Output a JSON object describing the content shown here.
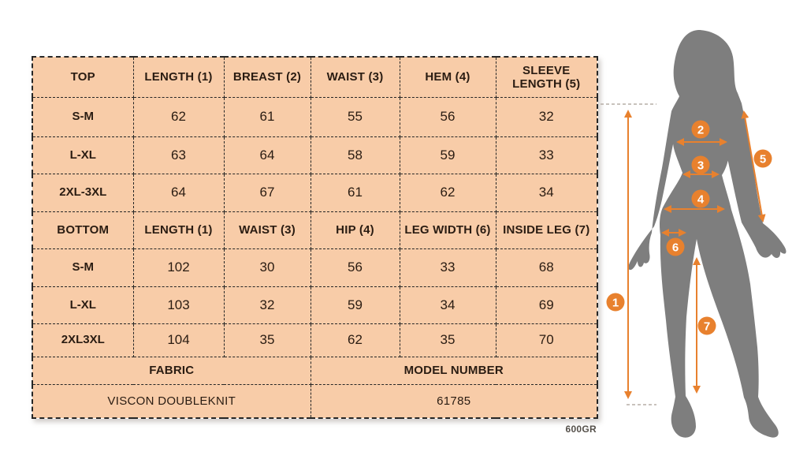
{
  "page": {
    "footnote": "600GR"
  },
  "colors": {
    "header_orange": "#E57E2B",
    "cell_peach": "#F8CCA8",
    "accent_orange": "#E8812E",
    "silhouette_gray": "#7E7E7E",
    "text_dark": "#2A1C12"
  },
  "size_chart": {
    "top_section": {
      "header": [
        "TOP",
        "LENGTH (1)",
        "BREAST (2)",
        "WAIST (3)",
        "HEM (4)",
        "SLEEVE LENGTH (5)"
      ],
      "rows": [
        {
          "label": "S-M",
          "values": [
            "62",
            "61",
            "55",
            "56",
            "32"
          ]
        },
        {
          "label": "L-XL",
          "values": [
            "63",
            "64",
            "58",
            "59",
            "33"
          ]
        },
        {
          "label": "2XL-3XL",
          "values": [
            "64",
            "67",
            "61",
            "62",
            "34"
          ]
        }
      ]
    },
    "bottom_section": {
      "header": [
        "BOTTOM",
        "LENGTH (1)",
        "WAIST (3)",
        "HIP (4)",
        "LEG WIDTH (6)",
        "INSIDE LEG (7)"
      ],
      "rows": [
        {
          "label": "S-M",
          "values": [
            "102",
            "30",
            "56",
            "33",
            "68"
          ]
        },
        {
          "label": "L-XL",
          "values": [
            "103",
            "32",
            "59",
            "34",
            "69"
          ]
        },
        {
          "label": "2XL3XL",
          "values": [
            "104",
            "35",
            "62",
            "35",
            "70"
          ]
        }
      ]
    },
    "info_section": {
      "headers": [
        "FABRIC",
        "MODEL NUMBER"
      ],
      "values": [
        "VISCON DOUBLEKNIT",
        "61785"
      ]
    }
  },
  "diagram": {
    "markers": [
      "1",
      "2",
      "3",
      "4",
      "5",
      "6",
      "7"
    ]
  }
}
